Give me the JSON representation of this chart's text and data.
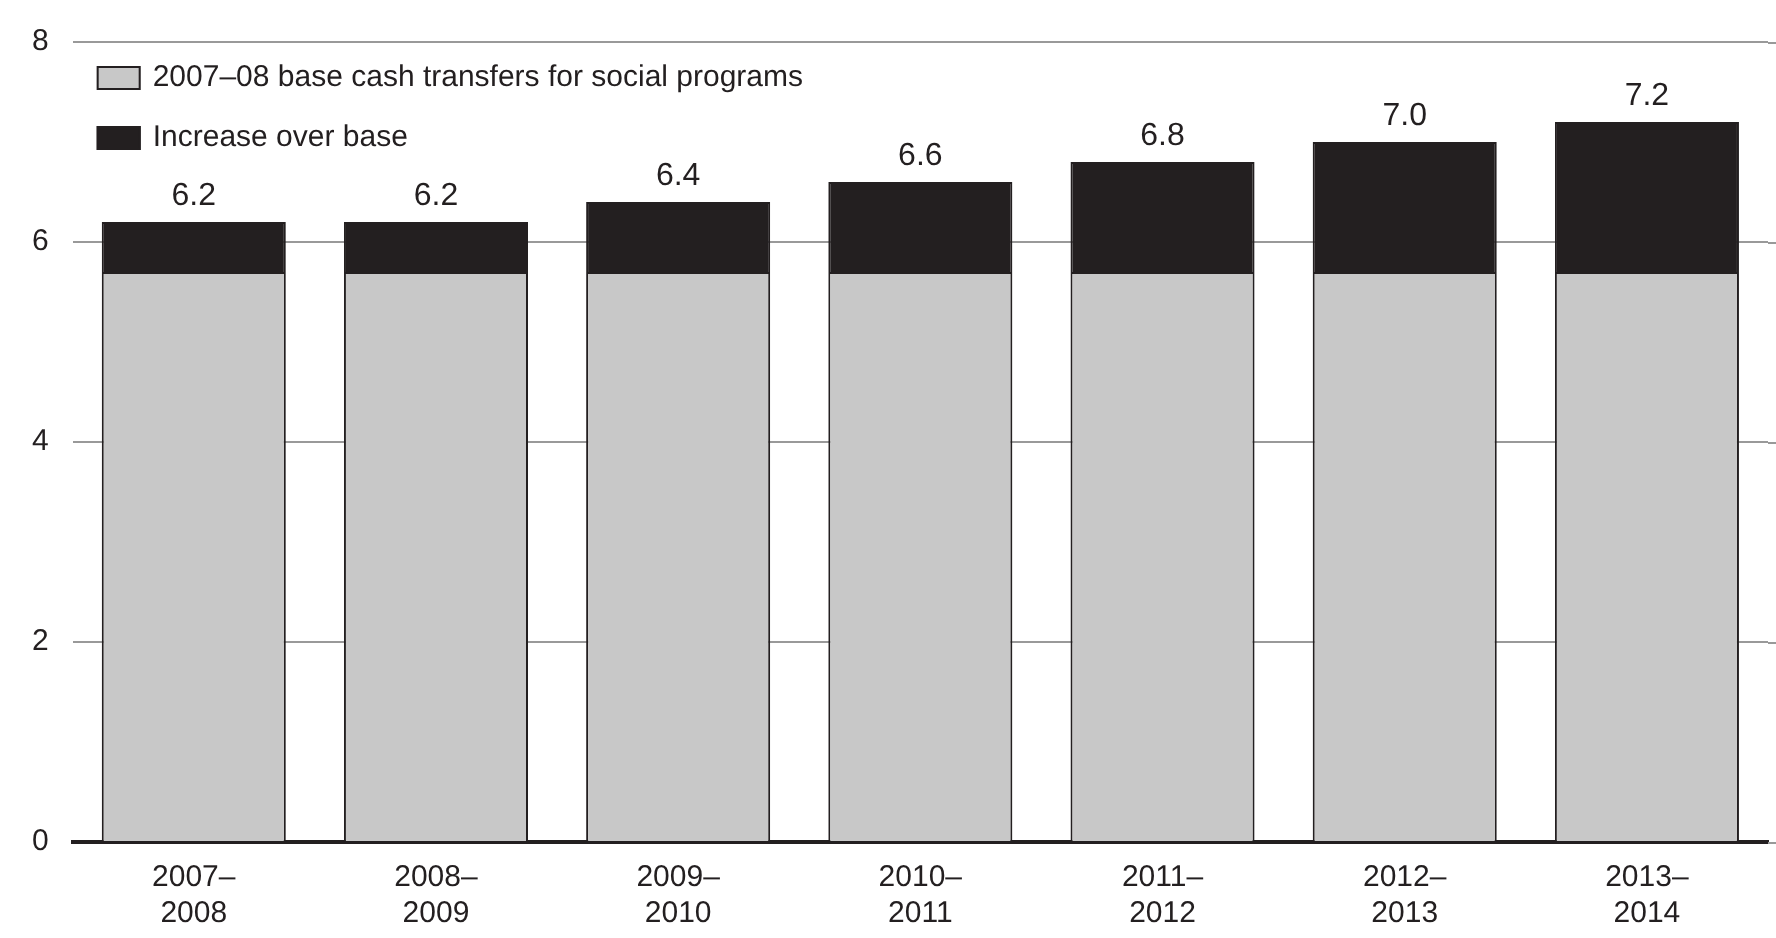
{
  "chart_data": {
    "type": "bar",
    "stacked": true,
    "categories": [
      "2007–2008",
      "2008–2009",
      "2009–2010",
      "2010–2011",
      "2011–2012",
      "2012–2013",
      "2013–2014"
    ],
    "series": [
      {
        "name": "2007–08 base cash transfers for social programs",
        "color": "#c8c8c8",
        "values": [
          5.7,
          5.7,
          5.7,
          5.7,
          5.7,
          5.7,
          5.7
        ]
      },
      {
        "name": "Increase over base",
        "color": "#231f20",
        "values": [
          0.5,
          0.5,
          0.7,
          0.9,
          1.1,
          1.3,
          1.5
        ]
      }
    ],
    "totals": [
      "6.2",
      "6.2",
      "6.4",
      "6.6",
      "6.8",
      "7.0",
      "7.2"
    ],
    "ylim": [
      0,
      8
    ],
    "yticks": [
      0,
      2,
      4,
      6,
      8
    ],
    "grid": "y",
    "legend": "top left"
  }
}
